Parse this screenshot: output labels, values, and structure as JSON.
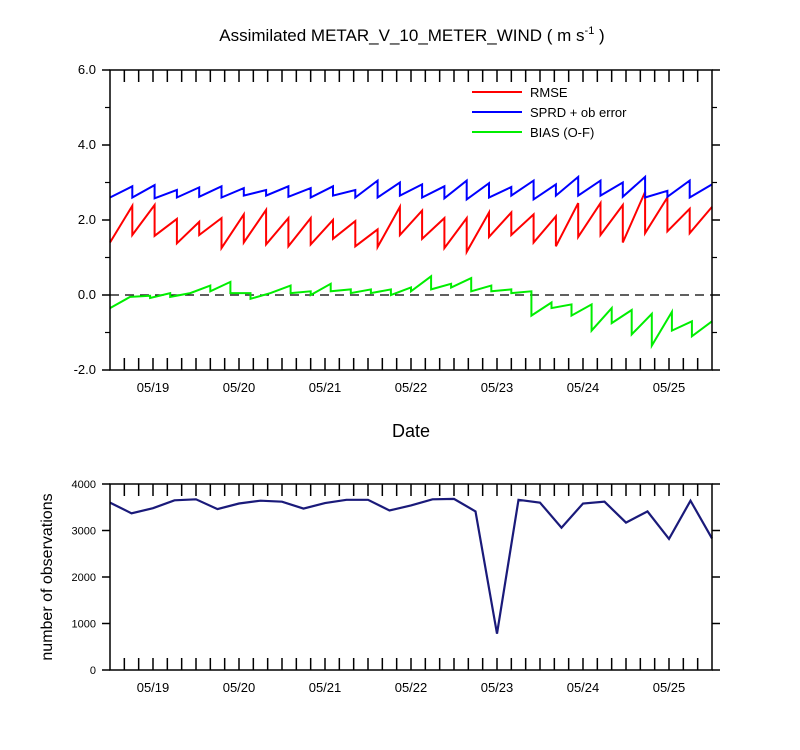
{
  "chart_data": [
    {
      "type": "line",
      "title": "Assimilated METAR_V_10_METER_WIND ( m s",
      "title_superscript": "-1",
      "title_suffix": " )",
      "xlabel": "Date",
      "ylabel": "",
      "ylim": [
        -2.0,
        6.0
      ],
      "yticks": [
        -2.0,
        0.0,
        2.0,
        4.0,
        6.0
      ],
      "ytick_labels": [
        "-2.0",
        "0.0",
        "2.0",
        "4.0",
        "6.0"
      ],
      "x_range": [
        0,
        21
      ],
      "xtick_positions": [
        1.5,
        4.5,
        7.5,
        10.5,
        13.5,
        16.5,
        19.5
      ],
      "xtick_labels": [
        "05/19",
        "05/20",
        "05/21",
        "05/22",
        "05/23",
        "05/24",
        "05/25"
      ],
      "reference_line": 0.0,
      "legend_position": "top-right",
      "series": [
        {
          "name": "RMSE",
          "color": "#ff0000",
          "segments": [
            [
              1.4,
              2.38
            ],
            [
              1.6,
              2.4
            ],
            [
              1.58,
              2.03
            ],
            [
              1.38,
              1.95
            ],
            [
              1.6,
              2.05
            ],
            [
              1.25,
              2.15
            ],
            [
              1.4,
              2.27
            ],
            [
              1.35,
              2.05
            ],
            [
              1.3,
              2.05
            ],
            [
              1.35,
              2.0
            ],
            [
              1.5,
              1.97
            ],
            [
              1.3,
              1.75
            ],
            [
              1.28,
              2.35
            ],
            [
              1.6,
              2.25
            ],
            [
              1.5,
              2.05
            ],
            [
              1.25,
              2.05
            ],
            [
              1.15,
              2.2
            ],
            [
              1.55,
              2.2
            ],
            [
              1.6,
              2.15
            ],
            [
              1.4,
              2.1
            ],
            [
              1.3,
              2.45
            ],
            [
              1.55,
              2.45
            ],
            [
              1.6,
              2.4
            ],
            [
              1.4,
              2.75
            ],
            [
              1.65,
              2.6
            ],
            [
              1.7,
              2.3
            ],
            [
              1.65,
              2.35
            ]
          ]
        },
        {
          "name": "SPRD + ob error",
          "color": "#0000ff",
          "segments": [
            [
              2.6,
              2.9
            ],
            [
              2.6,
              2.93
            ],
            [
              2.58,
              2.8
            ],
            [
              2.6,
              2.87
            ],
            [
              2.62,
              2.9
            ],
            [
              2.6,
              2.85
            ],
            [
              2.65,
              2.8
            ],
            [
              2.65,
              2.9
            ],
            [
              2.62,
              2.85
            ],
            [
              2.6,
              2.9
            ],
            [
              2.65,
              2.8
            ],
            [
              2.6,
              3.05
            ],
            [
              2.6,
              3.0
            ],
            [
              2.65,
              2.95
            ],
            [
              2.6,
              2.9
            ],
            [
              2.58,
              3.05
            ],
            [
              2.55,
              2.98
            ],
            [
              2.6,
              2.88
            ],
            [
              2.65,
              3.05
            ],
            [
              2.55,
              2.95
            ],
            [
              2.65,
              3.15
            ],
            [
              2.65,
              3.05
            ],
            [
              2.65,
              3.0
            ],
            [
              2.62,
              3.15
            ],
            [
              2.6,
              2.78
            ],
            [
              2.62,
              3.05
            ],
            [
              2.6,
              2.95
            ]
          ]
        },
        {
          "name": "BIAS (O-F)",
          "color": "#00ee00",
          "segments": [
            [
              -0.35,
              -0.05
            ],
            [
              -0.05,
              -0.02
            ],
            [
              -0.08,
              0.05
            ],
            [
              -0.05,
              0.05
            ],
            [
              0.05,
              0.25
            ],
            [
              0.1,
              0.35
            ],
            [
              0.05,
              0.05
            ],
            [
              -0.1,
              0.05
            ],
            [
              0.05,
              0.25
            ],
            [
              0.05,
              0.1
            ],
            [
              0.0,
              0.3
            ],
            [
              0.1,
              0.15
            ],
            [
              0.05,
              0.15
            ],
            [
              0.05,
              0.15
            ],
            [
              0.0,
              0.2
            ],
            [
              0.1,
              0.5
            ],
            [
              0.15,
              0.3
            ],
            [
              0.2,
              0.45
            ],
            [
              0.1,
              0.25
            ],
            [
              0.1,
              0.15
            ],
            [
              0.05,
              0.1
            ],
            [
              -0.55,
              -0.2
            ],
            [
              -0.35,
              -0.25
            ],
            [
              -0.55,
              -0.25
            ],
            [
              -0.95,
              -0.35
            ],
            [
              -0.75,
              -0.4
            ],
            [
              -1.05,
              -0.5
            ],
            [
              -1.35,
              -0.45
            ],
            [
              -0.95,
              -0.7
            ],
            [
              -1.1,
              -0.7
            ]
          ]
        }
      ]
    },
    {
      "type": "line",
      "title": "",
      "xlabel": "",
      "ylabel": "number of observations",
      "ylim": [
        0,
        4000
      ],
      "yticks": [
        0,
        1000,
        2000,
        3000,
        4000
      ],
      "ytick_labels": [
        "0",
        "1000",
        "2000",
        "3000",
        "4000"
      ],
      "x_range": [
        0,
        21
      ],
      "xtick_positions": [
        1.5,
        4.5,
        7.5,
        10.5,
        13.5,
        16.5,
        19.5
      ],
      "xtick_labels": [
        "05/19",
        "05/20",
        "05/21",
        "05/22",
        "05/23",
        "05/24",
        "05/25"
      ],
      "series": [
        {
          "name": "number of observations",
          "color": "#1a1a7a",
          "x": [
            0,
            0.75,
            1.5,
            2.25,
            3,
            3.75,
            4.5,
            5.25,
            6,
            6.75,
            7.5,
            8.25,
            9,
            9.75,
            10.5,
            11.25,
            12,
            12.75,
            13.5,
            14.25,
            15,
            15.75,
            16.5,
            17.25,
            18,
            18.75,
            19.5,
            20.25,
            21
          ],
          "values": [
            3600,
            3370,
            3480,
            3650,
            3670,
            3460,
            3580,
            3640,
            3620,
            3470,
            3590,
            3660,
            3660,
            3430,
            3540,
            3670,
            3680,
            3410,
            780,
            3660,
            3600,
            3060,
            3580,
            3620,
            3170,
            3410,
            2820,
            3640,
            2830
          ]
        }
      ]
    }
  ]
}
